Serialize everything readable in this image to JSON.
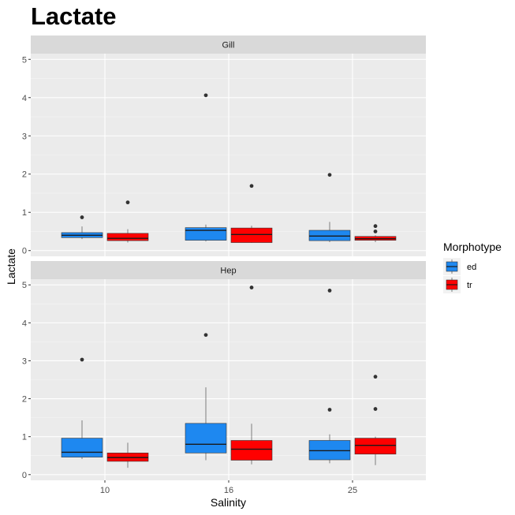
{
  "chart_data": {
    "type": "boxplot",
    "title": "Lactate",
    "xlabel": "Salinity",
    "ylabel": "Lactate",
    "categories": [
      "10",
      "16",
      "25"
    ],
    "ylim": [
      0,
      5
    ],
    "yticks": [
      0,
      1,
      2,
      3,
      4,
      5
    ],
    "grid": true,
    "legend": {
      "title": "Morphotype",
      "position": "right",
      "entries": [
        {
          "name": "ed",
          "color": "#1e88f0"
        },
        {
          "name": "tr",
          "color": "#ff0000"
        }
      ]
    },
    "facets": [
      {
        "label": "Gill",
        "boxes": [
          {
            "category": "10",
            "group": "ed",
            "whisker_low": 0.3,
            "q1": 0.34,
            "median": 0.4,
            "q3": 0.47,
            "whisker_high": 0.63,
            "outliers": [
              0.87
            ]
          },
          {
            "category": "10",
            "group": "tr",
            "whisker_low": 0.21,
            "q1": 0.26,
            "median": 0.32,
            "q3": 0.45,
            "whisker_high": 0.56,
            "outliers": [
              1.26
            ]
          },
          {
            "category": "16",
            "group": "ed",
            "whisker_low": 0.24,
            "q1": 0.27,
            "median": 0.53,
            "q3": 0.6,
            "whisker_high": 0.68,
            "outliers": [
              4.06
            ]
          },
          {
            "category": "16",
            "group": "tr",
            "whisker_low": 0.2,
            "q1": 0.21,
            "median": 0.42,
            "q3": 0.59,
            "whisker_high": 0.65,
            "outliers": [
              1.69
            ]
          },
          {
            "category": "25",
            "group": "ed",
            "whisker_low": 0.22,
            "q1": 0.26,
            "median": 0.38,
            "q3": 0.53,
            "whisker_high": 0.75,
            "outliers": [
              1.98
            ]
          },
          {
            "category": "25",
            "group": "tr",
            "whisker_low": 0.22,
            "q1": 0.27,
            "median": 0.31,
            "q3": 0.37,
            "whisker_high": 0.4,
            "outliers": [
              0.5,
              0.64
            ]
          }
        ]
      },
      {
        "label": "Hep",
        "boxes": [
          {
            "category": "10",
            "group": "ed",
            "whisker_low": 0.41,
            "q1": 0.46,
            "median": 0.59,
            "q3": 0.96,
            "whisker_high": 1.43,
            "outliers": [
              3.03
            ]
          },
          {
            "category": "10",
            "group": "tr",
            "whisker_low": 0.18,
            "q1": 0.35,
            "median": 0.45,
            "q3": 0.57,
            "whisker_high": 0.84,
            "outliers": []
          },
          {
            "category": "16",
            "group": "ed",
            "whisker_low": 0.38,
            "q1": 0.57,
            "median": 0.8,
            "q3": 1.35,
            "whisker_high": 2.3,
            "outliers": [
              3.68
            ]
          },
          {
            "category": "16",
            "group": "tr",
            "whisker_low": 0.27,
            "q1": 0.38,
            "median": 0.67,
            "q3": 0.9,
            "whisker_high": 1.34,
            "outliers": [
              4.93
            ]
          },
          {
            "category": "25",
            "group": "ed",
            "whisker_low": 0.3,
            "q1": 0.39,
            "median": 0.63,
            "q3": 0.9,
            "whisker_high": 1.06,
            "outliers": [
              1.71,
              4.85
            ]
          },
          {
            "category": "25",
            "group": "tr",
            "whisker_low": 0.25,
            "q1": 0.54,
            "median": 0.77,
            "q3": 0.96,
            "whisker_high": 1.0,
            "outliers": [
              1.73,
              2.58
            ]
          }
        ]
      }
    ]
  }
}
